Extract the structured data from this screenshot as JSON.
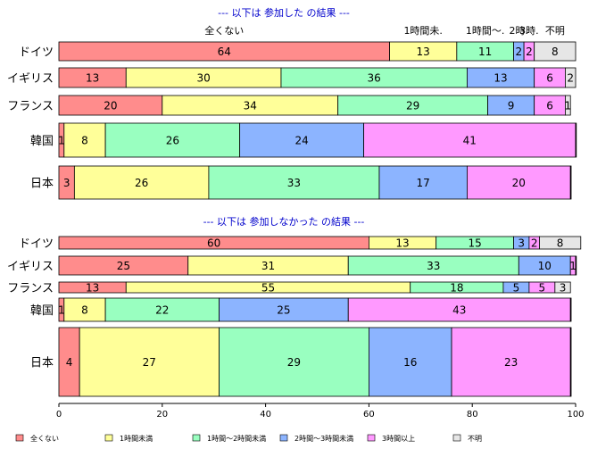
{
  "colors": [
    "#ff8c8c",
    "#ffff99",
    "#99ffc0",
    "#8cb4ff",
    "#ff99ff",
    "#e6e6e6"
  ],
  "chart_data": {
    "type": "bar",
    "orientation": "horizontal",
    "stacked": true,
    "xlim": [
      0,
      100
    ],
    "x_ticks": [
      "0",
      "20",
      "40",
      "60",
      "80",
      "100"
    ],
    "legend": {
      "placement": "bottom",
      "labels": [
        "全くない",
        "1時間未満",
        "1時間～2時間未満",
        "2時間～3時間未満",
        "3時間以上",
        "不明"
      ]
    },
    "panels": [
      {
        "title": "--- 以下は 参加した の結果 ---",
        "column_labels": [
          "全くない",
          "1時間未.",
          "1時間～.",
          "2時.",
          "3時.",
          "不明"
        ],
        "categories": [
          "ドイツ",
          "イギリス",
          "フランス",
          "韓国",
          "日本"
        ],
        "series": [
          {
            "name": "全くない",
            "values": [
              64,
              13,
              20,
              1,
              3
            ]
          },
          {
            "name": "1時間未満",
            "values": [
              13,
              30,
              34,
              8,
              26
            ]
          },
          {
            "name": "1時間～2時間未満",
            "values": [
              11,
              36,
              29,
              26,
              33
            ]
          },
          {
            "name": "2時間～3時間未満",
            "values": [
              2,
              13,
              9,
              24,
              17
            ]
          },
          {
            "name": "3時間以上",
            "values": [
              2,
              6,
              6,
              41,
              20
            ]
          },
          {
            "name": "不明",
            "values": [
              8,
              2,
              1,
              0,
              0
            ]
          }
        ]
      },
      {
        "title": "--- 以下は 参加しなかった の結果 ---",
        "categories": [
          "ドイツ",
          "イギリス",
          "フランス",
          "韓国",
          "日本"
        ],
        "series": [
          {
            "name": "全くない",
            "values": [
              60,
              25,
              13,
              1,
              4
            ]
          },
          {
            "name": "1時間未満",
            "values": [
              13,
              31,
              55,
              8,
              27
            ]
          },
          {
            "name": "1時間～2時間未満",
            "values": [
              15,
              33,
              18,
              22,
              29
            ]
          },
          {
            "name": "2時間～3時間未満",
            "values": [
              3,
              10,
              5,
              25,
              16
            ]
          },
          {
            "name": "3時間以上",
            "values": [
              2,
              1,
              5,
              43,
              23
            ]
          },
          {
            "name": "不明",
            "values": [
              8,
              0,
              3,
              0,
              0
            ]
          }
        ]
      }
    ]
  }
}
